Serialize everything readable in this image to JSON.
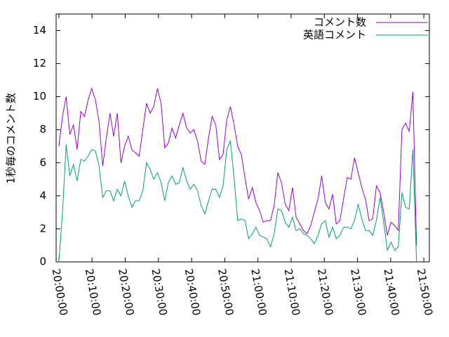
{
  "chart_data": {
    "type": "line",
    "y_label": "1秒毎のコメント数",
    "x": [
      "20:00:00",
      "20:01:06",
      "20:02:12",
      "20:03:18",
      "20:04:24",
      "20:05:30",
      "20:06:36",
      "20:07:42",
      "20:08:48",
      "20:09:54",
      "20:11:00",
      "20:12:06",
      "20:13:12",
      "20:14:18",
      "20:15:24",
      "20:16:30",
      "20:17:36",
      "20:18:42",
      "20:19:48",
      "20:20:54",
      "20:22:00",
      "20:23:06",
      "20:24:12",
      "20:25:18",
      "20:26:24",
      "20:27:30",
      "20:28:36",
      "20:29:42",
      "20:30:48",
      "20:31:54",
      "20:33:00",
      "20:34:06",
      "20:35:12",
      "20:36:18",
      "20:37:24",
      "20:38:30",
      "20:39:36",
      "20:40:42",
      "20:41:48",
      "20:42:54",
      "20:44:00",
      "20:45:06",
      "20:46:12",
      "20:47:18",
      "20:48:24",
      "20:49:30",
      "20:50:36",
      "20:51:42",
      "20:52:48",
      "20:53:54",
      "20:55:00",
      "20:56:06",
      "20:57:12",
      "20:58:18",
      "20:59:24",
      "21:00:30",
      "21:01:36",
      "21:02:42",
      "21:03:48",
      "21:04:54",
      "21:06:00",
      "21:07:06",
      "21:08:12",
      "21:09:18",
      "21:10:24",
      "21:11:30",
      "21:12:36",
      "21:13:42",
      "21:14:48",
      "21:15:54",
      "21:17:00",
      "21:18:06",
      "21:19:12",
      "21:20:18",
      "21:21:24",
      "21:22:30",
      "21:23:36",
      "21:24:42",
      "21:25:48",
      "21:26:54",
      "21:28:00",
      "21:29:06",
      "21:30:12",
      "21:31:18",
      "21:32:24",
      "21:33:30",
      "21:34:36",
      "21:35:42",
      "21:36:48",
      "21:37:54",
      "21:39:00",
      "21:40:06",
      "21:41:12",
      "21:42:18",
      "21:43:24",
      "21:44:30",
      "21:45:36",
      "21:46:42",
      "21:47:48"
    ],
    "series": [
      {
        "name": "コメント数",
        "color": "#9400d3",
        "values": [
          7,
          8.8,
          10,
          7.7,
          8.3,
          6.8,
          9.1,
          8.8,
          9.8,
          10.5,
          9.8,
          8.5,
          5.8,
          7.5,
          9,
          7.6,
          9,
          6,
          7,
          7.6,
          6.8,
          6.6,
          6.4,
          8,
          9.6,
          9,
          9.4,
          10.5,
          9.6,
          6.9,
          7.2,
          8.1,
          7.5,
          8.3,
          9,
          8.1,
          7.8,
          8,
          7.3,
          6.1,
          5.9,
          7.5,
          8.8,
          8.3,
          6.2,
          6.5,
          8.6,
          9.4,
          8.3,
          7,
          6.5,
          5.1,
          3.8,
          4.5,
          3.6,
          3.1,
          2.4,
          2.5,
          2.5,
          3.4,
          5.4,
          4.8,
          3.5,
          3.1,
          4.5,
          2.7,
          2.3,
          1.9,
          1.7,
          2.2,
          3,
          3.8,
          5.2,
          3.6,
          3.2,
          4.1,
          2.3,
          2.5,
          3.8,
          5.1,
          5,
          6.3,
          5.4,
          4.5,
          3.8,
          2.5,
          2.6,
          4.6,
          4.2,
          3,
          1.6,
          2.4,
          2.2,
          1.9,
          8,
          8.4,
          7.9,
          10.3,
          1
        ]
      },
      {
        "name": "英語コメント",
        "color": "#009e73",
        "values": [
          0,
          3,
          7.1,
          5.2,
          5.9,
          4.9,
          6.2,
          6.1,
          6.4,
          6.8,
          6.7,
          5.8,
          3.9,
          4.3,
          4.3,
          3.7,
          4.4,
          4,
          4.9,
          4,
          3.3,
          3.7,
          3.7,
          4.3,
          6,
          5.6,
          5,
          5.4,
          4.8,
          3.7,
          4.8,
          5.2,
          4.7,
          4.8,
          5.7,
          4.9,
          4.4,
          4.7,
          4.3,
          3.4,
          2.9,
          3.7,
          4.4,
          4.4,
          3.9,
          4.6,
          6.8,
          7.3,
          5.1,
          2.5,
          2.6,
          2.5,
          1.4,
          1.7,
          2.1,
          1.6,
          1.5,
          1.4,
          0.9,
          1.7,
          3.2,
          3.1,
          2.4,
          2.1,
          2.7,
          1.9,
          2,
          1.7,
          1.6,
          1.4,
          1.1,
          1.6,
          2.3,
          2.5,
          1.5,
          2.1,
          1.4,
          1.6,
          2.1,
          2.1,
          2,
          2.5,
          3.5,
          2.6,
          1.9,
          1.9,
          1.6,
          2.5,
          3.9,
          2.4,
          0.7,
          1.2,
          0.7,
          0.9,
          4.2,
          3.3,
          3.2,
          6.8,
          0
        ]
      }
    ],
    "xlim": [
      "19:59:10",
      "21:51:40"
    ],
    "xticks": [
      "20:00:00",
      "20:10:00",
      "20:20:00",
      "20:30:00",
      "20:40:00",
      "20:50:00",
      "21:00:00",
      "21:10:00",
      "21:20:00",
      "21:30:00",
      "21:40:00",
      "21:50:00"
    ],
    "ylim": [
      0,
      15
    ],
    "yticks": [
      0,
      2,
      4,
      6,
      8,
      10,
      12,
      14
    ],
    "legend": "top-right"
  }
}
